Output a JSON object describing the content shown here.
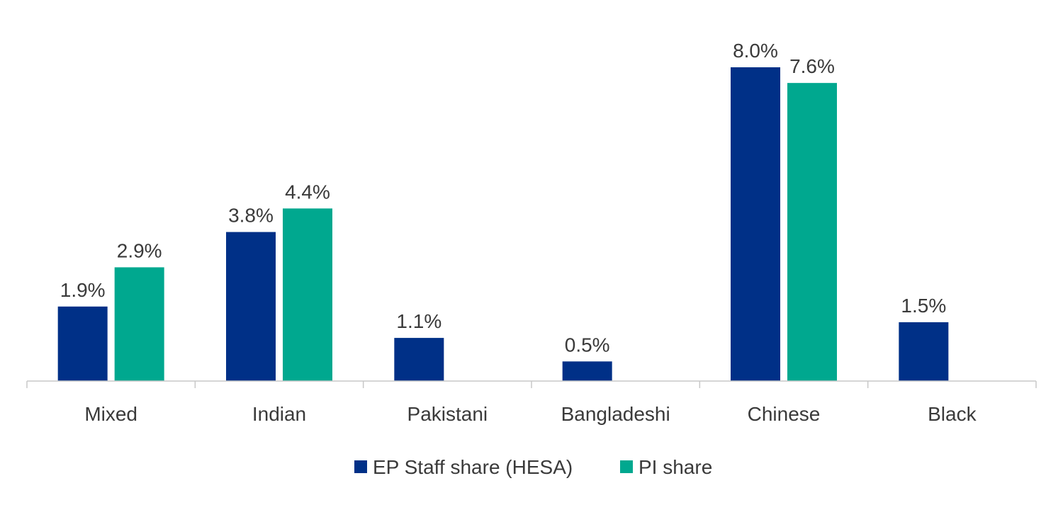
{
  "chart_data": {
    "type": "bar",
    "categories": [
      "Mixed",
      "Indian",
      "Pakistani",
      "Bangladeshi",
      "Chinese",
      "Black"
    ],
    "series": [
      {
        "name": "EP Staff share (HESA)",
        "color": "#003087",
        "values": [
          1.9,
          3.8,
          1.1,
          0.5,
          8.0,
          1.5
        ],
        "labels": [
          "1.9%",
          "3.8%",
          "1.1%",
          "0.5%",
          "8.0%",
          "1.5%"
        ]
      },
      {
        "name": "PI share",
        "color": "#00A88F",
        "values": [
          2.9,
          4.4,
          null,
          null,
          7.6,
          null
        ],
        "labels": [
          "2.9%",
          "4.4%",
          null,
          null,
          "7.6%",
          null
        ]
      }
    ],
    "title": "",
    "xlabel": "",
    "ylabel": "",
    "ylim": [
      0,
      8.0
    ],
    "grid": false,
    "legend_position": "bottom"
  }
}
